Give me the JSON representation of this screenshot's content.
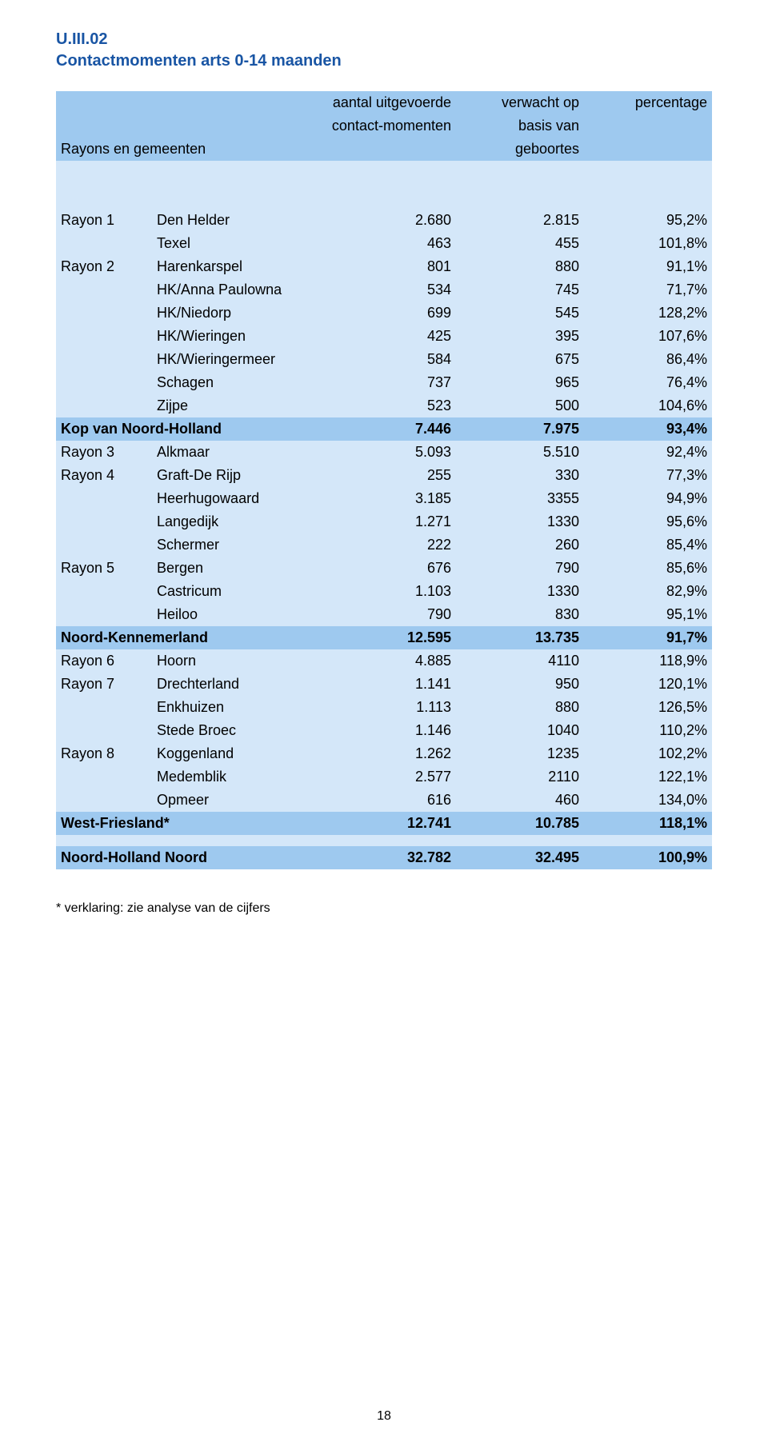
{
  "title": {
    "code": "U.III.02",
    "text": "Contactmomenten arts 0-14 maanden"
  },
  "headers": {
    "rayons": "Rayons en gemeenten",
    "col1_l1": "aantal uitgevoerde",
    "col1_l2": "contact-momenten",
    "col2_l1": "verwacht op",
    "col2_l2": "basis van",
    "col2_l3": "geboortes",
    "col3": "percentage"
  },
  "colors": {
    "header_bg": "#9ec9ef",
    "light_bg": "#d4e7f9",
    "title_color": "#1955a4",
    "text_color": "#000000",
    "page_bg": "#ffffff"
  },
  "rows": [
    {
      "style": "light",
      "rayon": "Rayon 1",
      "name": "Den Helder",
      "v1": "2.680",
      "v2": "2.815",
      "v3": "95,2%"
    },
    {
      "style": "light",
      "rayon": "",
      "name": "Texel",
      "v1": "463",
      "v2": "455",
      "v3": "101,8%"
    },
    {
      "style": "light",
      "rayon": "Rayon 2",
      "name": "Harenkarspel",
      "v1": "801",
      "v2": "880",
      "v3": "91,1%"
    },
    {
      "style": "light",
      "rayon": "",
      "name": "HK/Anna Paulowna",
      "v1": "534",
      "v2": "745",
      "v3": "71,7%"
    },
    {
      "style": "light",
      "rayon": "",
      "name": "HK/Niedorp",
      "v1": "699",
      "v2": "545",
      "v3": "128,2%"
    },
    {
      "style": "light",
      "rayon": "",
      "name": "HK/Wieringen",
      "v1": "425",
      "v2": "395",
      "v3": "107,6%"
    },
    {
      "style": "light",
      "rayon": "",
      "name": "HK/Wieringermeer",
      "v1": "584",
      "v2": "675",
      "v3": "86,4%"
    },
    {
      "style": "light",
      "rayon": "",
      "name": "Schagen",
      "v1": "737",
      "v2": "965",
      "v3": "76,4%"
    },
    {
      "style": "light",
      "rayon": "",
      "name": "Zijpe",
      "v1": "523",
      "v2": "500",
      "v3": "104,6%"
    },
    {
      "style": "mid",
      "bold": true,
      "span": true,
      "name": "Kop van Noord-Holland",
      "v1": "7.446",
      "v2": "7.975",
      "v3": "93,4%"
    },
    {
      "style": "light",
      "rayon": "Rayon 3",
      "name": "Alkmaar",
      "v1": "5.093",
      "v2": "5.510",
      "v3": "92,4%"
    },
    {
      "style": "light",
      "rayon": "Rayon 4",
      "name": "Graft-De Rijp",
      "v1": "255",
      "v2": "330",
      "v3": "77,3%"
    },
    {
      "style": "light",
      "rayon": "",
      "name": "Heerhugowaard",
      "v1": "3.185",
      "v2": "3355",
      "v3": "94,9%"
    },
    {
      "style": "light",
      "rayon": "",
      "name": "Langedijk",
      "v1": "1.271",
      "v2": "1330",
      "v3": "95,6%"
    },
    {
      "style": "light",
      "rayon": "",
      "name": "Schermer",
      "v1": "222",
      "v2": "260",
      "v3": "85,4%"
    },
    {
      "style": "light",
      "rayon": "Rayon 5",
      "name": "Bergen",
      "v1": "676",
      "v2": "790",
      "v3": "85,6%"
    },
    {
      "style": "light",
      "rayon": "",
      "name": "Castricum",
      "v1": "1.103",
      "v2": "1330",
      "v3": "82,9%"
    },
    {
      "style": "light",
      "rayon": "",
      "name": "Heiloo",
      "v1": "790",
      "v2": "830",
      "v3": "95,1%"
    },
    {
      "style": "mid",
      "bold": true,
      "span": true,
      "name": "Noord-Kennemerland",
      "v1": "12.595",
      "v2": "13.735",
      "v3": "91,7%"
    },
    {
      "style": "light",
      "rayon": "Rayon 6",
      "name": "Hoorn",
      "v1": "4.885",
      "v2": "4110",
      "v3": "118,9%"
    },
    {
      "style": "light",
      "rayon": "Rayon 7",
      "name": "Drechterland",
      "v1": "1.141",
      "v2": "950",
      "v3": "120,1%"
    },
    {
      "style": "light",
      "rayon": "",
      "name": "Enkhuizen",
      "v1": "1.113",
      "v2": "880",
      "v3": "126,5%"
    },
    {
      "style": "light",
      "rayon": "",
      "name": "Stede Broec",
      "v1": "1.146",
      "v2": "1040",
      "v3": "110,2%"
    },
    {
      "style": "light",
      "rayon": "Rayon 8",
      "name": "Koggenland",
      "v1": "1.262",
      "v2": "1235",
      "v3": "102,2%"
    },
    {
      "style": "light",
      "rayon": "",
      "name": "Medemblik",
      "v1": "2.577",
      "v2": "2110",
      "v3": "122,1%"
    },
    {
      "style": "light",
      "rayon": "",
      "name": "Opmeer",
      "v1": "616",
      "v2": "460",
      "v3": "134,0%"
    },
    {
      "style": "mid",
      "bold": true,
      "span": true,
      "name": "West-Friesland*",
      "v1": "12.741",
      "v2": "10.785",
      "v3": "118,1%"
    }
  ],
  "total": {
    "name": "Noord-Holland Noord",
    "v1": "32.782",
    "v2": "32.495",
    "v3": "100,9%"
  },
  "footnote": "* verklaring: zie analyse van de cijfers",
  "page_number": "18"
}
